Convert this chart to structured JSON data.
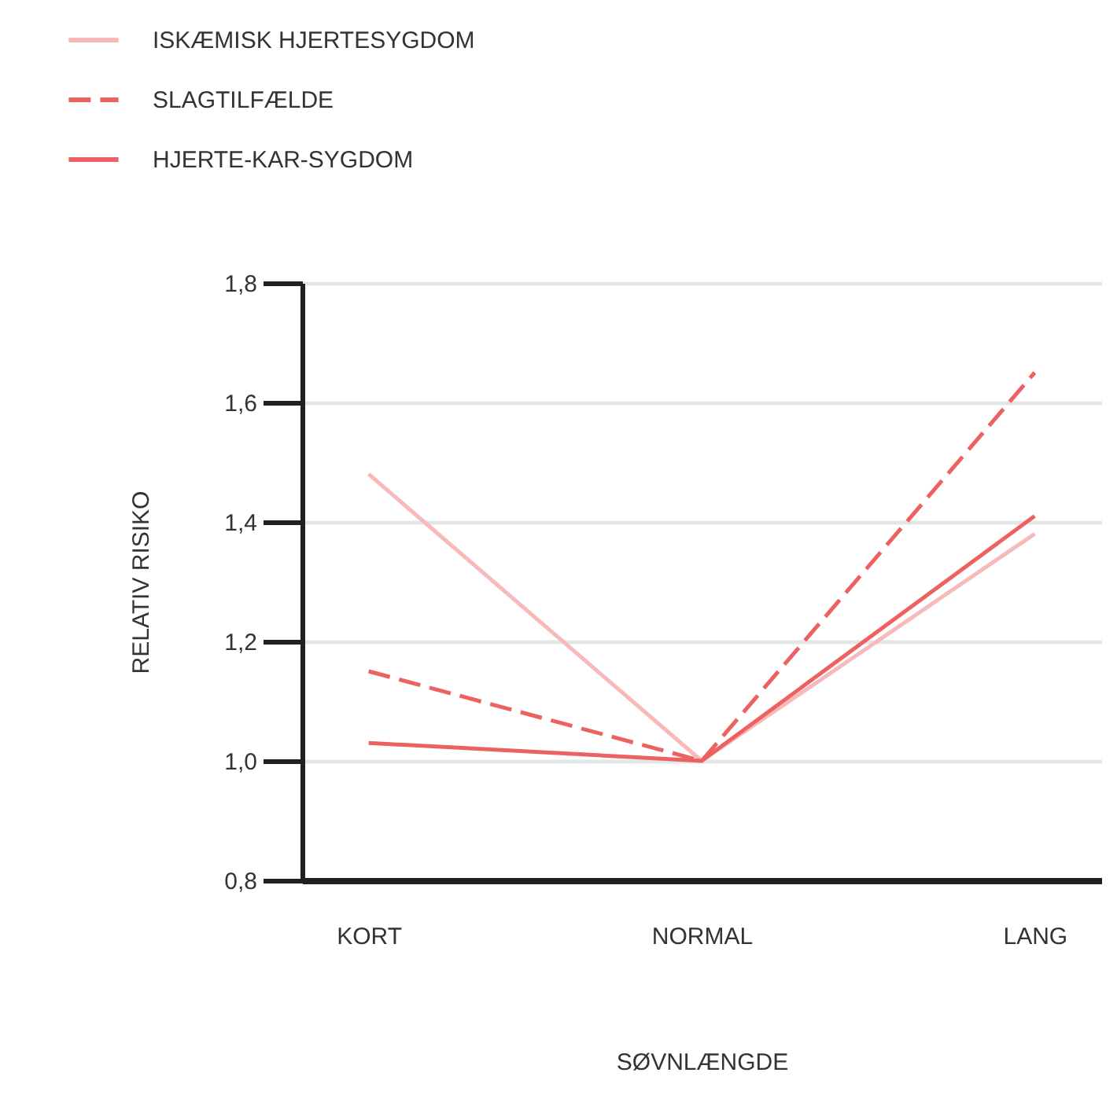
{
  "chart_data": {
    "type": "line",
    "xlabel": "SØVNLÆNGDE",
    "ylabel": "RELATIV RISIKO",
    "categories": [
      "KORT",
      "NORMAL",
      "LANG"
    ],
    "ylim": [
      0.8,
      1.8
    ],
    "yticks": [
      {
        "value": 0.8,
        "label": "0,8"
      },
      {
        "value": 1.0,
        "label": "1,0"
      },
      {
        "value": 1.2,
        "label": "1,2"
      },
      {
        "value": 1.4,
        "label": "1,4"
      },
      {
        "value": 1.6,
        "label": "1,6"
      },
      {
        "value": 1.8,
        "label": "1,8"
      }
    ],
    "grid": "y",
    "legend": "top left",
    "marker": "none",
    "series": [
      {
        "name": "ISKÆMISK HJERTESYGDOM",
        "color": "#f7b9b9",
        "line_style": "solid",
        "values": [
          1.48,
          1.0,
          1.38
        ]
      },
      {
        "name": "SLAGTILFÆLDE",
        "color": "#ee6161",
        "line_style": "dashed",
        "values": [
          1.15,
          1.0,
          1.65
        ]
      },
      {
        "name": "HJERTE-KAR-SYGDOM",
        "color": "#ee6161",
        "line_style": "solid",
        "values": [
          1.03,
          1.0,
          1.41
        ]
      }
    ]
  }
}
